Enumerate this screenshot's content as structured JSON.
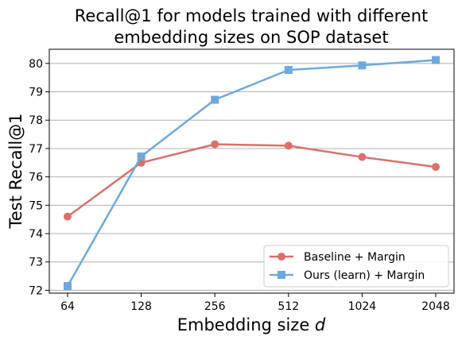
{
  "chart_data": {
    "type": "line",
    "title_lines": [
      "Recall@1 for models trained with different",
      "embedding sizes on SOP dataset"
    ],
    "xlabel_text": "Embedding size ",
    "xlabel_var": "d",
    "ylabel": "Test Recall@1",
    "categories": [
      "64",
      "128",
      "256",
      "512",
      "1024",
      "2048"
    ],
    "x_scale": "categorical",
    "ylim": [
      71.9,
      80.5
    ],
    "yticks": [
      "72",
      "73",
      "74",
      "75",
      "76",
      "77",
      "78",
      "79",
      "80"
    ],
    "grid": "horizontal",
    "legend_position": "lower-right",
    "series": [
      {
        "name": "Baseline + Margin",
        "marker": "circle",
        "color": "#d9706b",
        "values": [
          74.6,
          76.5,
          77.15,
          77.1,
          76.7,
          76.35
        ]
      },
      {
        "name": "Ours (learn) + Margin",
        "marker": "square",
        "color": "#6fa8dc",
        "values": [
          72.15,
          76.72,
          78.72,
          79.77,
          79.93,
          80.12
        ]
      }
    ]
  }
}
